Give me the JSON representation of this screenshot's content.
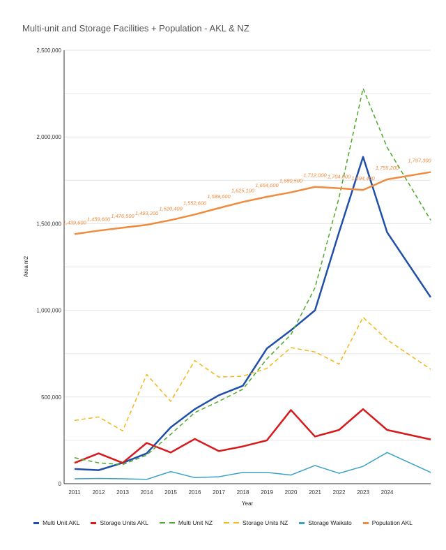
{
  "chart_data": {
    "type": "line",
    "title": "Multi-unit and Storage Facilities  + Population - AKL & NZ",
    "xlabel": "Year",
    "ylabel": "Area m2",
    "ylim": [
      0,
      2500000
    ],
    "yticks": [
      "0",
      "500,000",
      "1,000,000",
      "1,500,000",
      "2,000,000",
      "2,500,000"
    ],
    "ytick_values": [
      0,
      500000,
      1000000,
      1500000,
      2000000,
      2500000
    ],
    "xtick_labels": [
      "2011",
      "2012",
      "2013",
      "2014",
      "2015",
      "2016",
      "2017",
      "2018",
      "2019",
      "2020",
      "2021",
      "2022",
      "2023",
      "2024"
    ],
    "x": [
      2011,
      2012,
      2013,
      2014,
      2015,
      2016,
      2017,
      2018,
      2019,
      2020,
      2021,
      2022,
      2023,
      2024,
      2025
    ],
    "grid": true,
    "legend": "bottom",
    "series": [
      {
        "name": "Multi Unit AKL",
        "color": "#1f4fa8",
        "dash": false,
        "values": [
          85000,
          78000,
          120000,
          175000,
          325000,
          430000,
          510000,
          565000,
          780000,
          885000,
          1000000,
          1450000,
          1885000,
          1450000,
          1075000
        ]
      },
      {
        "name": "Storage Units AKL",
        "color": "#d7191c",
        "dash": false,
        "values": [
          120000,
          175000,
          120000,
          235000,
          180000,
          258000,
          188000,
          215000,
          250000,
          425000,
          272000,
          310000,
          430000,
          310000,
          255000
        ]
      },
      {
        "name": "Multi Unit NZ",
        "color": "#4caa2a",
        "dash": true,
        "values": [
          150000,
          120000,
          110000,
          165000,
          285000,
          410000,
          475000,
          545000,
          720000,
          860000,
          1130000,
          1650000,
          2280000,
          1940000,
          1520000
        ]
      },
      {
        "name": "Storage Units NZ",
        "color": "#f2b818",
        "dash": true,
        "values": [
          365000,
          385000,
          305000,
          630000,
          475000,
          710000,
          615000,
          620000,
          665000,
          785000,
          760000,
          690000,
          960000,
          830000,
          660000
        ]
      },
      {
        "name": "Storage Waikato",
        "color": "#3aa0c8",
        "dash": false,
        "values": [
          28000,
          30000,
          28000,
          25000,
          70000,
          35000,
          40000,
          65000,
          65000,
          50000,
          105000,
          60000,
          100000,
          180000,
          65000
        ]
      },
      {
        "name": "Population AKL",
        "color": "#f08a3c",
        "dash": false,
        "values": [
          1439600,
          1459600,
          1476500,
          1493200,
          1520400,
          1552600,
          1589600,
          1625100,
          1654600,
          1680500,
          1712000,
          1704000,
          1694400,
          1755200,
          1797300
        ],
        "labels": [
          "1,439,600",
          "1,459,600",
          "1,476,500",
          "1,493,200",
          "1,520,400",
          "1,552,600",
          "1,589,600",
          "1,625,100",
          "1,654,600",
          "1,680,500",
          "1,712,000",
          "1,704,000",
          "1,694,400",
          "1,755,200",
          "1,797,300"
        ]
      }
    ]
  }
}
